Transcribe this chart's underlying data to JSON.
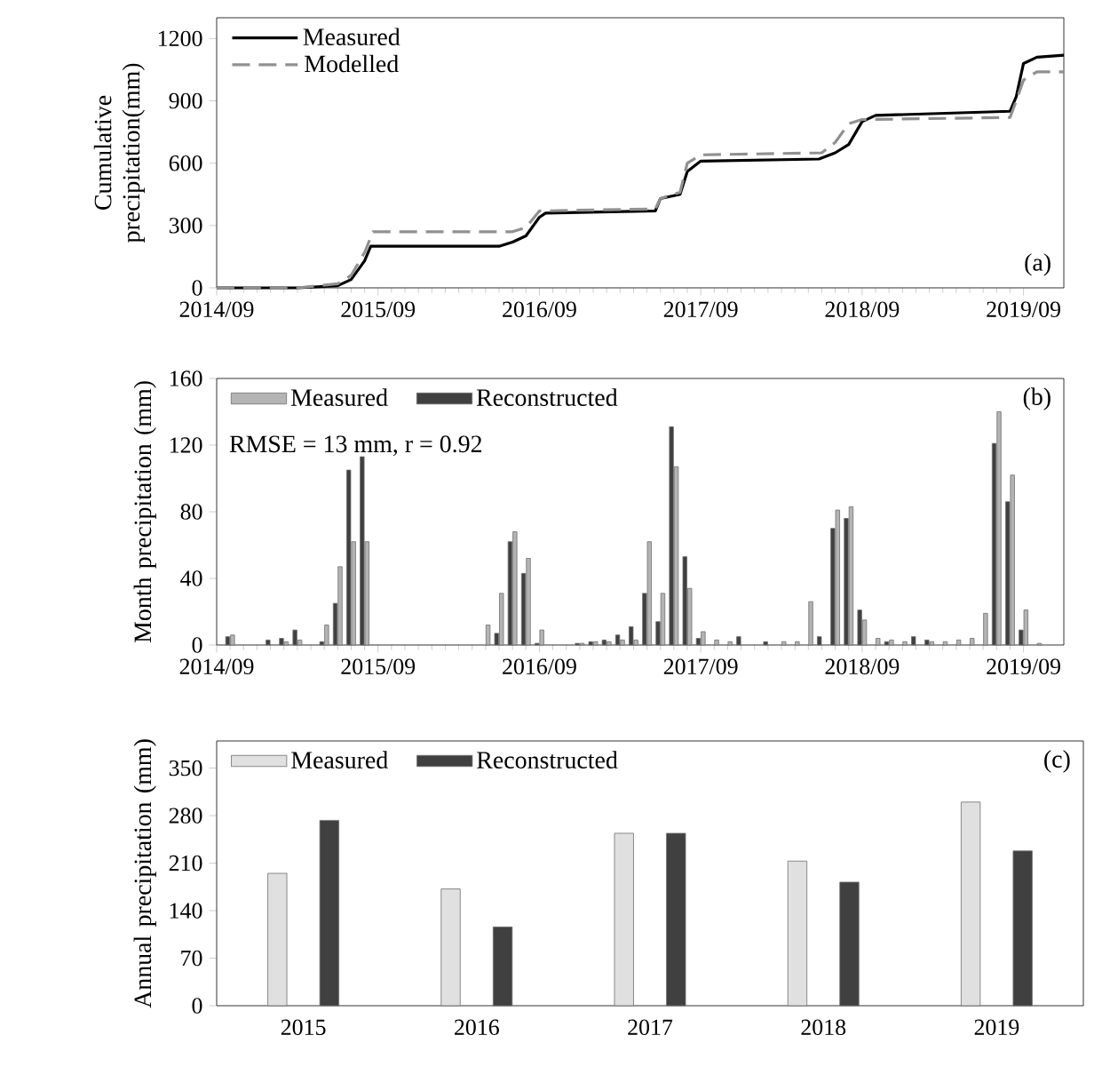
{
  "chart_data": [
    {
      "type": "line",
      "ylabel": "Cumulative precipitation(mm)",
      "xlim": [
        "2014-09",
        "2019-12"
      ],
      "ylim": [
        0,
        1300
      ],
      "xticks": [
        {
          "value": "2014-09",
          "label": "2014/09"
        },
        {
          "value": "2015-09",
          "label": "2015/09"
        },
        {
          "value": "2016-09",
          "label": "2016/09"
        },
        {
          "value": "2017-09",
          "label": "2017/09"
        },
        {
          "value": "2018-09",
          "label": "2018/09"
        },
        {
          "value": "2019-09",
          "label": "2019/09"
        }
      ],
      "yticks": [
        0,
        300,
        600,
        900,
        1200
      ],
      "legend": "top left",
      "annotations": [
        "(a)"
      ],
      "series": [
        {
          "name": "Measured",
          "color": "#000000",
          "line_style": "solid",
          "x": [
            "2014-09",
            "2015-03",
            "2015-06",
            "2015-07",
            "2015-08",
            "2015-08-15",
            "2016-06",
            "2016-07",
            "2016-08",
            "2016-09",
            "2016-09-15",
            "2017-05-20",
            "2017-06",
            "2017-07-15",
            "2017-08",
            "2017-09",
            "2018-05-25",
            "2018-07",
            "2018-08",
            "2018-09",
            "2018-10",
            "2019-08",
            "2019-08-15",
            "2019-09",
            "2019-10",
            "2019-12"
          ],
          "values": [
            0,
            0,
            10,
            40,
            130,
            200,
            200,
            220,
            250,
            340,
            360,
            370,
            430,
            450,
            560,
            610,
            620,
            650,
            690,
            800,
            830,
            850,
            920,
            1080,
            1110,
            1120
          ]
        },
        {
          "name": "Modelled",
          "color": "#909090",
          "line_style": "dashed",
          "x": [
            "2014-09",
            "2015-03",
            "2015-06",
            "2015-07",
            "2015-08",
            "2015-08-20",
            "2016-07",
            "2016-08",
            "2016-09",
            "2017-05-20",
            "2017-06",
            "2017-07-15",
            "2017-08",
            "2017-09",
            "2018-06",
            "2018-07",
            "2018-08",
            "2018-09",
            "2019-08",
            "2019-08-15",
            "2019-09",
            "2019-10",
            "2019-12"
          ],
          "values": [
            0,
            0,
            20,
            60,
            170,
            270,
            270,
            290,
            370,
            380,
            430,
            460,
            600,
            640,
            650,
            700,
            790,
            810,
            820,
            900,
            1000,
            1040,
            1040
          ]
        }
      ]
    },
    {
      "type": "bar",
      "ylabel": "Month precipitation (mm)",
      "xlim": [
        "2014-09",
        "2019-12"
      ],
      "ylim": [
        0,
        160
      ],
      "xticks": [
        {
          "value": "2014-09",
          "label": "2014/09"
        },
        {
          "value": "2015-09",
          "label": "2015/09"
        },
        {
          "value": "2016-09",
          "label": "2016/09"
        },
        {
          "value": "2017-09",
          "label": "2017/09"
        },
        {
          "value": "2018-09",
          "label": "2018/09"
        },
        {
          "value": "2019-09",
          "label": "2019/09"
        }
      ],
      "yticks": [
        0,
        40,
        80,
        120,
        160
      ],
      "legend": "top left",
      "annotations": [
        "RMSE = 13 mm, r = 0.92",
        "(b)"
      ],
      "x": [
        "2014-10",
        "2014-11",
        "2014-12",
        "2015-01",
        "2015-02",
        "2015-03",
        "2015-04",
        "2015-05",
        "2015-06",
        "2015-07",
        "2015-08",
        "2015-09",
        "2015-10",
        "2015-11",
        "2015-12",
        "2016-01",
        "2016-02",
        "2016-03",
        "2016-04",
        "2016-05",
        "2016-06",
        "2016-07",
        "2016-08",
        "2016-09",
        "2016-10",
        "2016-11",
        "2016-12",
        "2017-01",
        "2017-02",
        "2017-03",
        "2017-04",
        "2017-05",
        "2017-06",
        "2017-07",
        "2017-08",
        "2017-09",
        "2017-10",
        "2017-11",
        "2017-12",
        "2018-01",
        "2018-02",
        "2018-03",
        "2018-04",
        "2018-05",
        "2018-06",
        "2018-07",
        "2018-08",
        "2018-09",
        "2018-10",
        "2018-11",
        "2018-12",
        "2019-01",
        "2019-02",
        "2019-03",
        "2019-04",
        "2019-05",
        "2019-06",
        "2019-07",
        "2019-08",
        "2019-09",
        "2019-10"
      ],
      "series": [
        {
          "name": "Measured",
          "color": "#b4b4b4",
          "values": [
            6,
            null,
            null,
            null,
            2,
            3,
            null,
            12,
            47,
            62,
            62,
            null,
            null,
            null,
            null,
            null,
            null,
            null,
            null,
            12,
            31,
            68,
            52,
            9,
            null,
            null,
            1,
            2,
            2,
            3,
            3,
            62,
            31,
            107,
            34,
            8,
            3,
            2,
            null,
            null,
            null,
            2,
            2,
            26,
            null,
            81,
            83,
            15,
            4,
            3,
            2,
            null,
            2,
            2,
            3,
            4,
            19,
            140,
            102,
            21,
            1
          ]
        },
        {
          "name": "Reconstructed",
          "color": "#404040",
          "values": [
            5,
            null,
            null,
            3,
            4,
            9,
            null,
            2,
            25,
            105,
            113,
            null,
            null,
            null,
            null,
            null,
            null,
            null,
            null,
            null,
            7,
            62,
            43,
            1,
            null,
            null,
            1,
            2,
            3,
            6,
            11,
            31,
            14,
            131,
            53,
            4,
            null,
            null,
            5,
            null,
            2,
            null,
            null,
            null,
            5,
            70,
            76,
            21,
            null,
            2,
            null,
            5,
            3,
            null,
            null,
            null,
            null,
            121,
            86,
            9,
            null
          ]
        }
      ]
    },
    {
      "type": "bar",
      "ylabel": "Annual precipitation (mm)",
      "categories": [
        "2015",
        "2016",
        "2017",
        "2018",
        "2019"
      ],
      "ylim": [
        0,
        390
      ],
      "yticks": [
        0,
        70,
        140,
        210,
        280,
        350
      ],
      "legend": "top left",
      "annotations": [
        "(c)"
      ],
      "series": [
        {
          "name": "Measured",
          "color": "#e0e0e0",
          "values": [
            195,
            172,
            254,
            213,
            300
          ]
        },
        {
          "name": "Reconstructed",
          "color": "#404040",
          "values": [
            273,
            116,
            254,
            182,
            228
          ]
        }
      ]
    }
  ]
}
